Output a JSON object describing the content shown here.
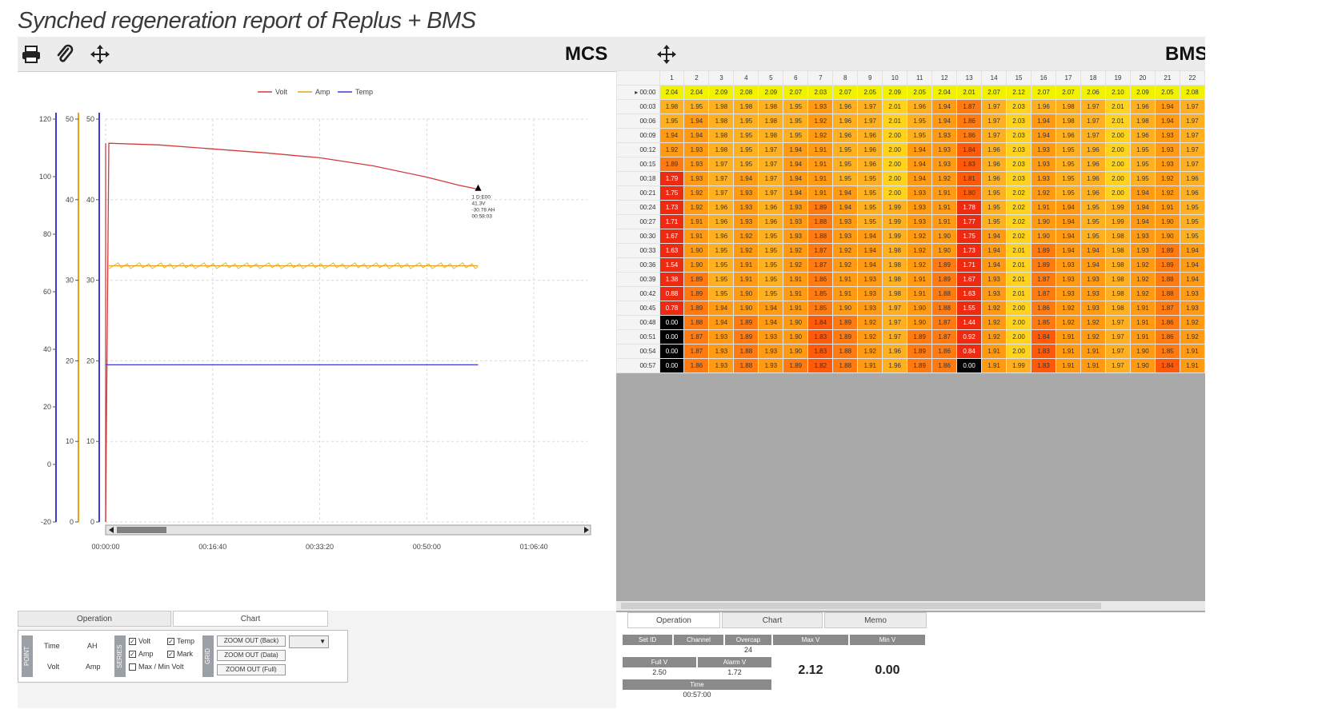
{
  "title": "Synched regeneration report of Replus + BMS",
  "mcs": {
    "label": "MCS",
    "toolbar": {
      "print_icon": "printer-icon",
      "attach_icon": "paperclip-icon",
      "move_icon": "move-icon"
    },
    "legend": [
      "Volt",
      "Amp",
      "Temp"
    ],
    "tabs": [
      "Operation",
      "Chart"
    ],
    "active_tab": "Chart",
    "controls": {
      "point_label": "POINT",
      "point_items": [
        "Time",
        "AH",
        "Volt",
        "Amp"
      ],
      "series_label": "SERIES",
      "checkboxes": [
        {
          "label": "Volt",
          "checked": true
        },
        {
          "label": "Temp",
          "checked": true
        },
        {
          "label": "Amp",
          "checked": true
        },
        {
          "label": "Mark",
          "checked": true
        },
        {
          "label": "Max / Min Volt",
          "checked": false
        }
      ],
      "grid_label": "GRID",
      "zoom_buttons": [
        "ZOOM OUT (Back)",
        "ZOOM OUT (Data)",
        "ZOOM OUT (Full)"
      ]
    }
  },
  "chart_data": {
    "type": "line",
    "title": "",
    "x_ticks": [
      "00:00:00",
      "00:16:40",
      "00:33:20",
      "00:50:00",
      "01:06:40"
    ],
    "x_unit": "time (hh:mm:ss)",
    "xlim_seconds": [
      0,
      4500
    ],
    "axes": [
      {
        "name": "Volt",
        "color": "#3b3bd6",
        "ylim": [
          -20,
          120
        ],
        "ticks": [
          -20,
          0,
          20,
          40,
          60,
          80,
          100,
          120
        ]
      },
      {
        "name": "Amp",
        "color": "#e7a317",
        "ylim": [
          0,
          50
        ],
        "ticks": [
          0,
          10,
          20,
          30,
          40,
          50
        ]
      },
      {
        "name": "Temp",
        "color": "#3b3bd6",
        "ylim": [
          0,
          50
        ],
        "ticks": [
          0,
          10,
          20,
          30,
          40,
          50
        ]
      }
    ],
    "series": [
      {
        "name": "Volt",
        "color": "#d33b3b",
        "axis": "Amp",
        "x": [
          0,
          30,
          500,
          1000,
          1500,
          2000,
          2500,
          3000,
          3300,
          3480
        ],
        "y": [
          0,
          47,
          46.8,
          46.3,
          45.8,
          45.2,
          44.2,
          42.8,
          41.8,
          41.3
        ]
      },
      {
        "name": "Amp",
        "color": "#e7a317",
        "axis": "Amp",
        "x": [
          30,
          3480
        ],
        "y": [
          31.8,
          31.8
        ]
      },
      {
        "name": "Temp",
        "color": "#3b3bd6",
        "axis": "Amp",
        "x": [
          0,
          3480
        ],
        "y": [
          19.5,
          19.5
        ]
      }
    ],
    "annotation": [
      "1 D:E00",
      "41.3V",
      "-30.78 AH",
      "00:58:03"
    ]
  },
  "bms": {
    "label": "BMS",
    "toolbar": {
      "print_icon": "printer-icon",
      "move_icon": "move-icon"
    },
    "columns": [
      "1",
      "2",
      "3",
      "4",
      "5",
      "6",
      "7",
      "8",
      "9",
      "10",
      "11",
      "12",
      "13",
      "14",
      "15",
      "16",
      "17",
      "18",
      "19",
      "20",
      "21",
      "22"
    ],
    "rows": [
      {
        "time": "00:00",
        "cells": [
          "2.04",
          "2.04",
          "2.09",
          "2.08",
          "2.09",
          "2.07",
          "2.03",
          "2.07",
          "2.05",
          "2.09",
          "2.05",
          "2.04",
          "2.01",
          "2.07",
          "2.12",
          "2.07",
          "2.07",
          "2.06",
          "2.10",
          "2.09",
          "2.05",
          "2.08"
        ]
      },
      {
        "time": "00:03",
        "cells": [
          "1.98",
          "1.95",
          "1.98",
          "1.98",
          "1.98",
          "1.95",
          "1.93",
          "1.96",
          "1.97",
          "2.01",
          "1.96",
          "1.94",
          "1.87",
          "1.97",
          "2.03",
          "1.96",
          "1.98",
          "1.97",
          "2.01",
          "1.96",
          "1.94",
          "1.97"
        ]
      },
      {
        "time": "00:06",
        "cells": [
          "1.95",
          "1.94",
          "1.98",
          "1.95",
          "1.98",
          "1.95",
          "1.92",
          "1.96",
          "1.97",
          "2.01",
          "1.95",
          "1.94",
          "1.86",
          "1.97",
          "2.03",
          "1.94",
          "1.98",
          "1.97",
          "2.01",
          "1.98",
          "1.94",
          "1.97"
        ]
      },
      {
        "time": "00:09",
        "cells": [
          "1.94",
          "1.94",
          "1.98",
          "1.95",
          "1.98",
          "1.95",
          "1.92",
          "1.96",
          "1.96",
          "2.00",
          "1.95",
          "1.93",
          "1.86",
          "1.97",
          "2.03",
          "1.94",
          "1.96",
          "1.97",
          "2.00",
          "1.96",
          "1.93",
          "1.97"
        ]
      },
      {
        "time": "00:12",
        "cells": [
          "1.92",
          "1.93",
          "1.98",
          "1.95",
          "1.97",
          "1.94",
          "1.91",
          "1.95",
          "1.96",
          "2.00",
          "1.94",
          "1.93",
          "1.84",
          "1.96",
          "2.03",
          "1.93",
          "1.95",
          "1.96",
          "2.00",
          "1.95",
          "1.93",
          "1.97"
        ]
      },
      {
        "time": "00:15",
        "cells": [
          "1.89",
          "1.93",
          "1.97",
          "1.95",
          "1.97",
          "1.94",
          "1.91",
          "1.95",
          "1.96",
          "2.00",
          "1.94",
          "1.93",
          "1.83",
          "1.96",
          "2.03",
          "1.93",
          "1.95",
          "1.96",
          "2.00",
          "1.95",
          "1.93",
          "1.97"
        ]
      },
      {
        "time": "00:18",
        "cells": [
          "1.79",
          "1.93",
          "1.97",
          "1.94",
          "1.97",
          "1.94",
          "1.91",
          "1.95",
          "1.95",
          "2.00",
          "1.94",
          "1.92",
          "1.81",
          "1.96",
          "2.03",
          "1.93",
          "1.95",
          "1.96",
          "2.00",
          "1.95",
          "1.92",
          "1.96"
        ]
      },
      {
        "time": "00:21",
        "cells": [
          "1.75",
          "1.92",
          "1.97",
          "1.93",
          "1.97",
          "1.94",
          "1.91",
          "1.94",
          "1.95",
          "2.00",
          "1.93",
          "1.91",
          "1.80",
          "1.95",
          "2.02",
          "1.92",
          "1.95",
          "1.96",
          "2.00",
          "1.94",
          "1.92",
          "1.96"
        ]
      },
      {
        "time": "00:24",
        "cells": [
          "1.73",
          "1.92",
          "1.96",
          "1.93",
          "1.96",
          "1.93",
          "1.89",
          "1.94",
          "1.95",
          "1.99",
          "1.93",
          "1.91",
          "1.78",
          "1.95",
          "2.02",
          "1.91",
          "1.94",
          "1.95",
          "1.99",
          "1.94",
          "1.91",
          "1.95"
        ]
      },
      {
        "time": "00:27",
        "cells": [
          "1.71",
          "1.91",
          "1.96",
          "1.93",
          "1.96",
          "1.93",
          "1.88",
          "1.93",
          "1.95",
          "1.99",
          "1.93",
          "1.91",
          "1.77",
          "1.95",
          "2.02",
          "1.90",
          "1.94",
          "1.95",
          "1.99",
          "1.94",
          "1.90",
          "1.95"
        ]
      },
      {
        "time": "00:30",
        "cells": [
          "1.67",
          "1.91",
          "1.96",
          "1.92",
          "1.95",
          "1.93",
          "1.88",
          "1.93",
          "1.94",
          "1.99",
          "1.92",
          "1.90",
          "1.75",
          "1.94",
          "2.02",
          "1.90",
          "1.94",
          "1.95",
          "1.98",
          "1.93",
          "1.90",
          "1.95"
        ]
      },
      {
        "time": "00:33",
        "cells": [
          "1.63",
          "1.90",
          "1.95",
          "1.92",
          "1.95",
          "1.92",
          "1.87",
          "1.92",
          "1.94",
          "1.98",
          "1.92",
          "1.90",
          "1.73",
          "1.94",
          "2.01",
          "1.89",
          "1.94",
          "1.94",
          "1.98",
          "1.93",
          "1.89",
          "1.94"
        ]
      },
      {
        "time": "00:36",
        "cells": [
          "1.54",
          "1.90",
          "1.95",
          "1.91",
          "1.95",
          "1.92",
          "1.87",
          "1.92",
          "1.94",
          "1.98",
          "1.92",
          "1.89",
          "1.71",
          "1.94",
          "2.01",
          "1.89",
          "1.93",
          "1.94",
          "1.98",
          "1.92",
          "1.89",
          "1.94"
        ]
      },
      {
        "time": "00:39",
        "cells": [
          "1.38",
          "1.89",
          "1.95",
          "1.91",
          "1.95",
          "1.91",
          "1.86",
          "1.91",
          "1.93",
          "1.98",
          "1.91",
          "1.89",
          "1.67",
          "1.93",
          "2.01",
          "1.87",
          "1.93",
          "1.93",
          "1.98",
          "1.92",
          "1.88",
          "1.94"
        ]
      },
      {
        "time": "00:42",
        "cells": [
          "0.88",
          "1.89",
          "1.95",
          "1.90",
          "1.95",
          "1.91",
          "1.85",
          "1.91",
          "1.93",
          "1.98",
          "1.91",
          "1.88",
          "1.63",
          "1.93",
          "2.01",
          "1.87",
          "1.93",
          "1.93",
          "1.98",
          "1.92",
          "1.88",
          "1.93"
        ]
      },
      {
        "time": "00:45",
        "cells": [
          "0.78",
          "1.89",
          "1.94",
          "1.90",
          "1.94",
          "1.91",
          "1.85",
          "1.90",
          "1.93",
          "1.97",
          "1.90",
          "1.88",
          "1.55",
          "1.92",
          "2.00",
          "1.86",
          "1.92",
          "1.93",
          "1.98",
          "1.91",
          "1.87",
          "1.93"
        ]
      },
      {
        "time": "00:48",
        "cells": [
          "0.00",
          "1.88",
          "1.94",
          "1.89",
          "1.94",
          "1.90",
          "1.84",
          "1.89",
          "1.92",
          "1.97",
          "1.90",
          "1.87",
          "1.44",
          "1.92",
          "2.00",
          "1.85",
          "1.92",
          "1.92",
          "1.97",
          "1.91",
          "1.86",
          "1.92"
        ]
      },
      {
        "time": "00:51",
        "cells": [
          "0.00",
          "1.87",
          "1.93",
          "1.89",
          "1.93",
          "1.90",
          "1.83",
          "1.89",
          "1.92",
          "1.97",
          "1.89",
          "1.87",
          "0.92",
          "1.92",
          "2.00",
          "1.84",
          "1.91",
          "1.92",
          "1.97",
          "1.91",
          "1.86",
          "1.92"
        ]
      },
      {
        "time": "00:54",
        "cells": [
          "0.00",
          "1.87",
          "1.93",
          "1.88",
          "1.93",
          "1.90",
          "1.83",
          "1.88",
          "1.92",
          "1.96",
          "1.89",
          "1.86",
          "0.84",
          "1.91",
          "2.00",
          "1.83",
          "1.91",
          "1.91",
          "1.97",
          "1.90",
          "1.85",
          "1.91"
        ]
      },
      {
        "time": "00:57",
        "cells": [
          "0.00",
          "1.86",
          "1.93",
          "1.88",
          "1.93",
          "1.89",
          "1.82",
          "1.88",
          "1.91",
          "1.96",
          "1.89",
          "1.86",
          "0.00",
          "1.91",
          "1.99",
          "1.83",
          "1.91",
          "1.91",
          "1.97",
          "1.90",
          "1.84",
          "1.91"
        ]
      }
    ],
    "tabs": [
      "Operation",
      "Chart",
      "Memo"
    ],
    "active_tab": "Operation",
    "info": {
      "headers": [
        "Set ID",
        "Channel",
        "Overcap",
        "Max V",
        "Min V"
      ],
      "overcap": "24",
      "full_v_label": "Full V",
      "full_v": "2.50",
      "alarm_v_label": "Alarm V",
      "alarm_v": "1.72",
      "time_label": "Time",
      "time": "00:57:00",
      "max_v": "2.12",
      "min_v": "0.00"
    }
  }
}
